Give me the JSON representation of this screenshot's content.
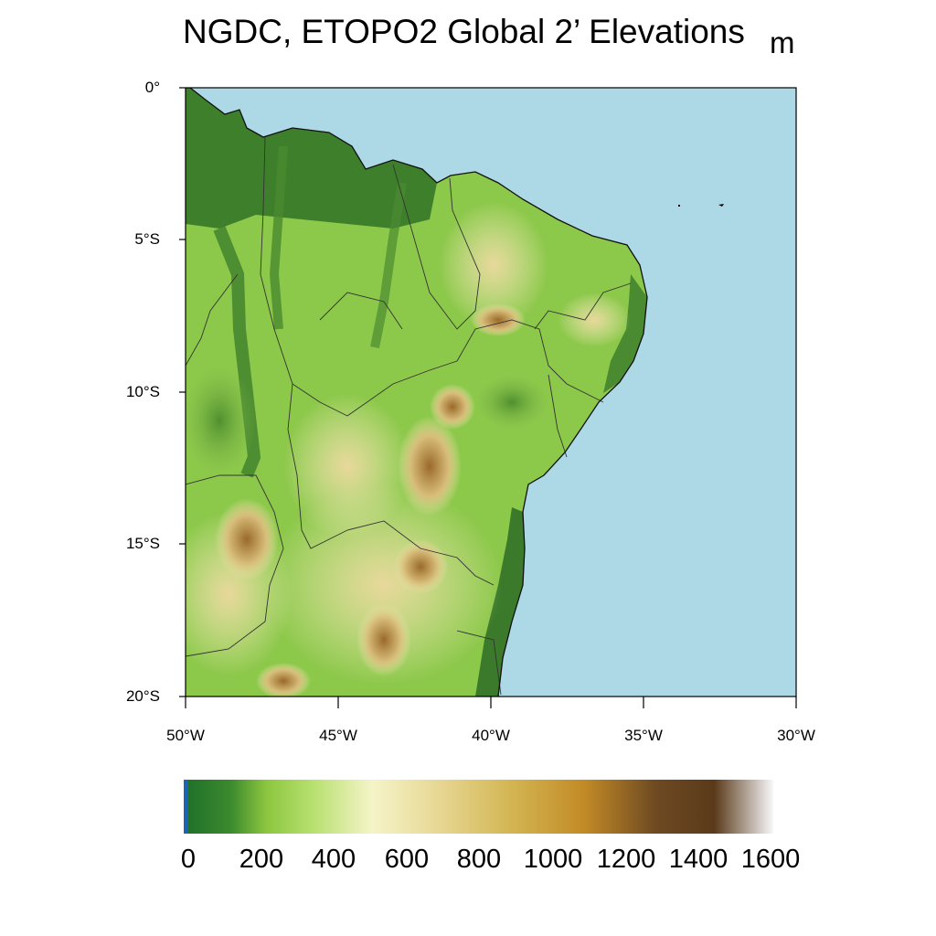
{
  "title": "NGDC, ETOPO2 Global 2’ Elevations",
  "units": "m",
  "lat_labels": [
    "0°",
    "5°S",
    "10°S",
    "15°S",
    "20°S"
  ],
  "lon_labels": [
    "50°W",
    "45°W",
    "40°W",
    "35°W",
    "30°W"
  ],
  "colorbar_labels": [
    "0",
    "200",
    "400",
    "600",
    "800",
    "1000",
    "1200",
    "1400",
    "1600"
  ],
  "colors": {
    "ocean": "#add8e6",
    "lowland": "#2e6e28",
    "plain": "#8cc84a",
    "upland": "#f5f0c8",
    "plateau": "#d8c07a",
    "highland": "#c8901c",
    "peak": "#5a3a1a"
  }
}
